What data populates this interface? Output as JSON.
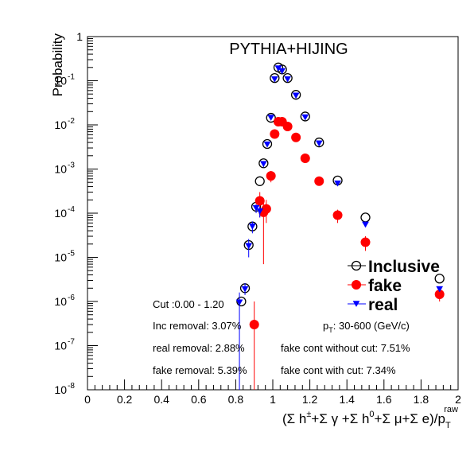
{
  "chart_data": {
    "type": "scatter",
    "title": "PYTHIA+HIJING",
    "ylabel": "Probability",
    "xlabel": {
      "main": "(Σ h",
      "sup1": "±",
      "mid": "+Σ γ +Σ h",
      "sup2": "0",
      "tail": "+Σ μ+Σ e)/p",
      "sub": "T",
      "sup3": "raw"
    },
    "xlim": [
      0,
      2
    ],
    "ylim": [
      1e-08,
      1
    ],
    "y_scale": "log",
    "grid": false,
    "legend_position": "right",
    "x_ticks": [
      "0",
      "0.2",
      "0.4",
      "0.6",
      "0.8",
      "1",
      "1.2",
      "1.4",
      "1.6",
      "1.8",
      "2"
    ],
    "y_ticks": [
      {
        "value": 1,
        "base": "1",
        "exp": ""
      },
      {
        "value": 0.1,
        "base": "10",
        "exp": "-1"
      },
      {
        "value": 0.01,
        "base": "10",
        "exp": "-2"
      },
      {
        "value": 0.001,
        "base": "10",
        "exp": "-3"
      },
      {
        "value": 0.0001,
        "base": "10",
        "exp": "-4"
      },
      {
        "value": 1e-05,
        "base": "10",
        "exp": "-5"
      },
      {
        "value": 1e-06,
        "base": "10",
        "exp": "-6"
      },
      {
        "value": 1e-07,
        "base": "10",
        "exp": "-7"
      },
      {
        "value": 1e-08,
        "base": "10",
        "exp": "-8"
      }
    ],
    "series": [
      {
        "name": "Inclusive",
        "color": "#000000",
        "marker": "open-circle",
        "points": [
          {
            "x": 0.83,
            "y": 1e-06,
            "lo": 1e-06,
            "hi": 1e-06
          },
          {
            "x": 0.85,
            "y": 2e-06,
            "lo": 2e-06,
            "hi": 2e-06
          },
          {
            "x": 0.87,
            "y": 1.9e-05,
            "lo": 1.9e-05,
            "hi": 1.9e-05
          },
          {
            "x": 0.89,
            "y": 5e-05,
            "lo": 5e-05,
            "hi": 5e-05
          },
          {
            "x": 0.91,
            "y": 0.00014,
            "lo": 0.00014,
            "hi": 0.00014
          },
          {
            "x": 0.93,
            "y": 0.00053,
            "lo": 0.00053,
            "hi": 0.00053
          },
          {
            "x": 0.95,
            "y": 0.00135,
            "lo": 0.00135,
            "hi": 0.00135
          },
          {
            "x": 0.97,
            "y": 0.0037,
            "lo": 0.0037,
            "hi": 0.0037
          },
          {
            "x": 0.99,
            "y": 0.0145,
            "lo": 0.0145,
            "hi": 0.0145
          },
          {
            "x": 1.01,
            "y": 0.115,
            "lo": 0.115,
            "hi": 0.115
          },
          {
            "x": 1.03,
            "y": 0.2,
            "lo": 0.2,
            "hi": 0.2
          },
          {
            "x": 1.05,
            "y": 0.18,
            "lo": 0.18,
            "hi": 0.18
          },
          {
            "x": 1.08,
            "y": 0.115,
            "lo": 0.115,
            "hi": 0.115
          },
          {
            "x": 1.125,
            "y": 0.048,
            "lo": 0.048,
            "hi": 0.048
          },
          {
            "x": 1.175,
            "y": 0.0155,
            "lo": 0.0155,
            "hi": 0.0155
          },
          {
            "x": 1.25,
            "y": 0.004,
            "lo": 0.004,
            "hi": 0.004
          },
          {
            "x": 1.35,
            "y": 0.00055,
            "lo": 0.00055,
            "hi": 0.00055
          },
          {
            "x": 1.5,
            "y": 8e-05,
            "lo": 8e-05,
            "hi": 8e-05
          },
          {
            "x": 1.9,
            "y": 3.3e-06,
            "lo": 3.3e-06,
            "hi": 3.3e-06
          }
        ]
      },
      {
        "name": "fake",
        "color": "#ff0000",
        "marker": "filled-circle",
        "points": [
          {
            "x": 0.9,
            "y": 3e-07,
            "lo": 1e-08,
            "hi": 1e-06
          },
          {
            "x": 0.93,
            "y": 0.00019,
            "lo": 8e-05,
            "hi": 0.0003
          },
          {
            "x": 0.95,
            "y": 0.000105,
            "lo": 7e-06,
            "hi": 0.0002
          },
          {
            "x": 0.965,
            "y": 0.000125,
            "lo": 6e-05,
            "hi": 0.0002
          },
          {
            "x": 0.99,
            "y": 0.0007,
            "lo": 0.0005,
            "hi": 0.0009
          },
          {
            "x": 1.01,
            "y": 0.0062,
            "lo": 0.0062,
            "hi": 0.0062
          },
          {
            "x": 1.03,
            "y": 0.0118,
            "lo": 0.0118,
            "hi": 0.0118
          },
          {
            "x": 1.05,
            "y": 0.0118,
            "lo": 0.0118,
            "hi": 0.0118
          },
          {
            "x": 1.08,
            "y": 0.0092,
            "lo": 0.0092,
            "hi": 0.0092
          },
          {
            "x": 1.125,
            "y": 0.0052,
            "lo": 0.0052,
            "hi": 0.0052
          },
          {
            "x": 1.175,
            "y": 0.00175,
            "lo": 0.00175,
            "hi": 0.00175
          },
          {
            "x": 1.25,
            "y": 0.00053,
            "lo": 0.00053,
            "hi": 0.00053
          },
          {
            "x": 1.35,
            "y": 9e-05,
            "lo": 6e-05,
            "hi": 0.00012
          },
          {
            "x": 1.5,
            "y": 2.2e-05,
            "lo": 1.4e-05,
            "hi": 3e-05
          },
          {
            "x": 1.9,
            "y": 1.45e-06,
            "lo": 1e-06,
            "hi": 2e-06
          }
        ]
      },
      {
        "name": "real",
        "color": "#0000ff",
        "marker": "filled-triangle-down",
        "points": [
          {
            "x": 0.82,
            "y": 9.5e-07,
            "lo": 1e-08,
            "hi": 1.6e-06
          },
          {
            "x": 0.85,
            "y": 1.9e-06,
            "lo": 1.4e-06,
            "hi": 2.6e-06
          },
          {
            "x": 0.87,
            "y": 1.8e-05,
            "lo": 1e-05,
            "hi": 2.6e-05
          },
          {
            "x": 0.89,
            "y": 5e-05,
            "lo": 3.5e-05,
            "hi": 6.5e-05
          },
          {
            "x": 0.91,
            "y": 0.00013,
            "lo": 0.0001,
            "hi": 0.00016
          },
          {
            "x": 0.93,
            "y": 0.00011,
            "lo": 8e-05,
            "hi": 0.00014
          },
          {
            "x": 0.95,
            "y": 0.0013,
            "lo": 0.0011,
            "hi": 0.0015
          },
          {
            "x": 0.97,
            "y": 0.0036,
            "lo": 0.0032,
            "hi": 0.004
          },
          {
            "x": 0.99,
            "y": 0.0145,
            "lo": 0.013,
            "hi": 0.016
          },
          {
            "x": 1.01,
            "y": 0.108,
            "lo": 0.108,
            "hi": 0.108
          },
          {
            "x": 1.03,
            "y": 0.19,
            "lo": 0.19,
            "hi": 0.19
          },
          {
            "x": 1.05,
            "y": 0.165,
            "lo": 0.165,
            "hi": 0.165
          },
          {
            "x": 1.08,
            "y": 0.108,
            "lo": 0.108,
            "hi": 0.108
          },
          {
            "x": 1.125,
            "y": 0.046,
            "lo": 0.046,
            "hi": 0.046
          },
          {
            "x": 1.175,
            "y": 0.0148,
            "lo": 0.0148,
            "hi": 0.0148
          },
          {
            "x": 1.25,
            "y": 0.0038,
            "lo": 0.0038,
            "hi": 0.0038
          },
          {
            "x": 1.35,
            "y": 0.00047,
            "lo": 0.00047,
            "hi": 0.00047
          },
          {
            "x": 1.5,
            "y": 5.5e-05,
            "lo": 5.5e-05,
            "hi": 5.5e-05
          },
          {
            "x": 1.9,
            "y": 1.9e-06,
            "lo": 1.9e-06,
            "hi": 1.9e-06
          }
        ]
      }
    ],
    "annotations": {
      "cut": "Cut :0.00 - 1.20",
      "inc_removal": "Inc removal: 3.07%",
      "real_removal": "real removal: 2.88%",
      "fake_removal": "fake removal: 5.39%",
      "pt_range": {
        "main": "p",
        "sub": "T",
        "rest": ": 30-600 (GeV/c)"
      },
      "fake_cont_without_cut": "fake cont without cut: 7.51%",
      "fake_cont_with_cut": "fake cont with cut: 7.34%"
    }
  }
}
